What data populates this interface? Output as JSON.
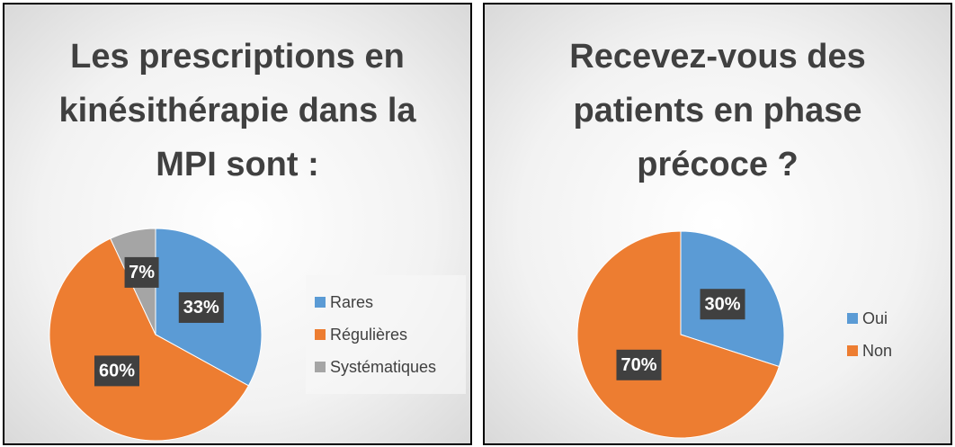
{
  "chart_data": [
    {
      "type": "pie",
      "title": "Les prescriptions en kinésithérapie dans la MPI sont :",
      "categories": [
        "Rares",
        "Régulières",
        "Systématiques"
      ],
      "values": [
        33,
        60,
        7
      ],
      "value_labels": [
        "33%",
        "60%",
        "7%"
      ],
      "colors": [
        "#5b9bd5",
        "#ed7d31",
        "#a5a5a5"
      ],
      "legend": "right"
    },
    {
      "type": "pie",
      "title": "Recevez-vous des patients en phase précoce ?",
      "categories": [
        "Oui",
        "Non"
      ],
      "values": [
        30,
        70
      ],
      "value_labels": [
        "30%",
        "70%"
      ],
      "colors": [
        "#5b9bd5",
        "#ed7d31"
      ],
      "legend": "right"
    }
  ]
}
